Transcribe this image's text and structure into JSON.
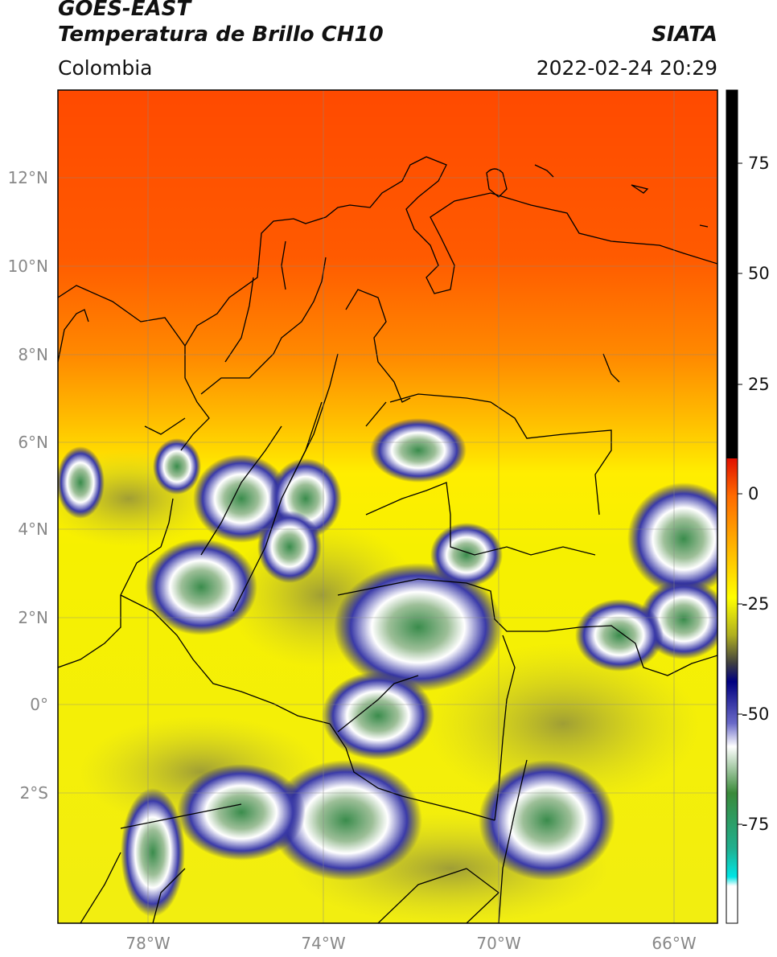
{
  "header": {
    "satellite": "GOES-EAST",
    "product": "Temperatura de Brillo CH10",
    "organization": "SIATA",
    "region": "Colombia",
    "timestamp": "2022-02-24 20:29"
  },
  "map": {
    "lat_ticks": [
      "12°N",
      "10°N",
      "8°N",
      "6°N",
      "4°N",
      "2°N",
      "0°",
      "2°S"
    ],
    "lon_ticks": [
      "78°W",
      "74°W",
      "70°W",
      "66°W"
    ],
    "gridlines": true
  },
  "colorbar": {
    "ticks": [
      "75",
      "50",
      "25",
      "0",
      "-25",
      "-50",
      "-75"
    ],
    "colors": {
      "warm": "#ff4500",
      "mid": "#ffff00",
      "cold_blue": "#000080",
      "cold_white": "#ffffff",
      "coldest_green": "#2e8b57",
      "extreme": "#00e5e5",
      "above_range": "#000000"
    }
  }
}
